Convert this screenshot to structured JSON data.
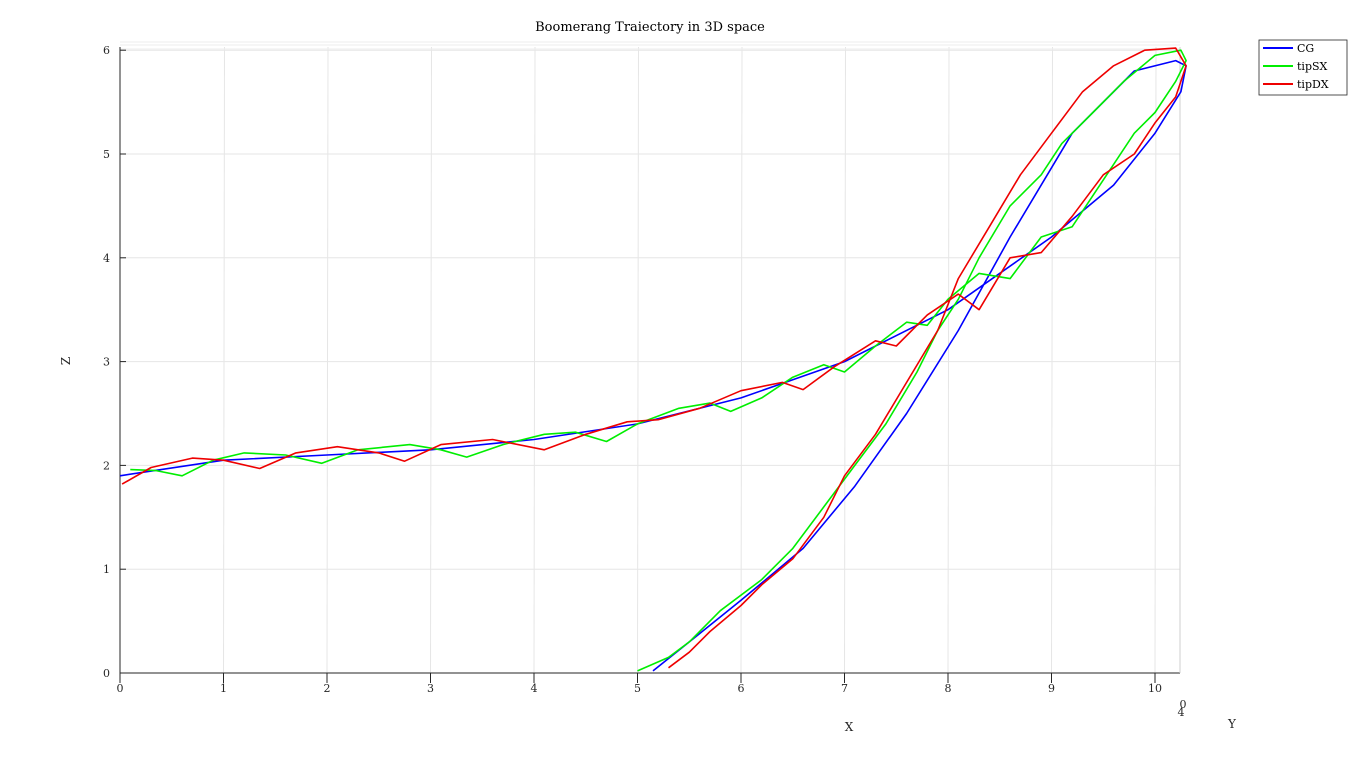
{
  "chart_data": {
    "type": "line",
    "title": "Boomerang Traiectory in 3D space",
    "xlabel": "X",
    "ylabel": "Y",
    "zlabel": "Z",
    "xlim": [
      0,
      10.4
    ],
    "zlim": [
      0,
      6.1
    ],
    "x_ticks": [
      "0",
      "1",
      "2",
      "3",
      "4",
      "5",
      "6",
      "7",
      "8",
      "9",
      "10"
    ],
    "y_ticks": [
      "0",
      "4"
    ],
    "z_ticks": [
      "0",
      "1",
      "2",
      "3",
      "4",
      "5",
      "6"
    ],
    "grid": true,
    "legend_position": "top-right",
    "series": [
      {
        "name": "CG",
        "color": "#0000ff",
        "x": [
          0.0,
          1.0,
          2.0,
          3.0,
          4.0,
          5.0,
          6.0,
          7.0,
          8.0,
          9.0,
          9.6,
          10.0,
          10.25,
          10.3,
          10.2,
          9.8,
          9.2,
          8.6,
          8.1,
          7.6,
          7.1,
          6.6,
          6.0,
          5.5,
          5.15
        ],
        "z": [
          1.9,
          2.05,
          2.1,
          2.15,
          2.25,
          2.4,
          2.65,
          3.0,
          3.5,
          4.2,
          4.7,
          5.2,
          5.6,
          5.85,
          5.9,
          5.8,
          5.2,
          4.2,
          3.3,
          2.5,
          1.8,
          1.2,
          0.7,
          0.3,
          0.02
        ]
      },
      {
        "name": "tipSX",
        "color": "#00ee00",
        "x": [
          0.1,
          0.35,
          0.6,
          0.9,
          1.2,
          1.6,
          1.95,
          2.3,
          2.8,
          3.1,
          3.35,
          3.7,
          4.1,
          4.4,
          4.7,
          5.0,
          5.4,
          5.7,
          5.9,
          6.2,
          6.5,
          6.8,
          7.0,
          7.3,
          7.6,
          7.8,
          8.0,
          8.3,
          8.6,
          8.9,
          9.2,
          9.5,
          9.8,
          10.0,
          10.2,
          10.3,
          10.25,
          10.0,
          9.7,
          9.4,
          9.1,
          8.9,
          8.6,
          8.3,
          8.1,
          7.9,
          7.7,
          7.4,
          7.1,
          6.8,
          6.5,
          6.2,
          5.8,
          5.5,
          5.3,
          5.0
        ],
        "z": [
          1.96,
          1.95,
          1.9,
          2.05,
          2.12,
          2.1,
          2.02,
          2.15,
          2.2,
          2.15,
          2.08,
          2.2,
          2.3,
          2.32,
          2.23,
          2.4,
          2.55,
          2.6,
          2.52,
          2.65,
          2.85,
          2.97,
          2.9,
          3.15,
          3.38,
          3.35,
          3.6,
          3.85,
          3.8,
          4.2,
          4.3,
          4.75,
          5.2,
          5.4,
          5.7,
          5.9,
          6.0,
          5.95,
          5.7,
          5.4,
          5.1,
          4.8,
          4.5,
          4.0,
          3.6,
          3.3,
          2.9,
          2.4,
          2.0,
          1.6,
          1.2,
          0.9,
          0.6,
          0.3,
          0.15,
          0.02
        ]
      },
      {
        "name": "tipDX",
        "color": "#ee0000",
        "x": [
          0.02,
          0.3,
          0.7,
          1.0,
          1.35,
          1.7,
          2.1,
          2.5,
          2.75,
          3.1,
          3.6,
          4.1,
          4.5,
          4.9,
          5.2,
          5.6,
          6.0,
          6.4,
          6.6,
          6.9,
          7.3,
          7.5,
          7.8,
          8.1,
          8.3,
          8.6,
          8.9,
          9.2,
          9.5,
          9.8,
          10.0,
          10.2,
          10.3,
          10.2,
          9.9,
          9.6,
          9.3,
          9.0,
          8.7,
          8.4,
          8.1,
          7.9,
          7.6,
          7.3,
          7.0,
          6.8,
          6.5,
          6.2,
          6.0,
          5.7,
          5.5,
          5.3
        ],
        "z": [
          1.82,
          1.98,
          2.07,
          2.05,
          1.97,
          2.12,
          2.18,
          2.12,
          2.04,
          2.2,
          2.25,
          2.15,
          2.3,
          2.42,
          2.44,
          2.55,
          2.72,
          2.8,
          2.73,
          2.95,
          3.2,
          3.15,
          3.45,
          3.65,
          3.5,
          4.0,
          4.05,
          4.4,
          4.8,
          5.0,
          5.3,
          5.55,
          5.85,
          6.02,
          6.0,
          5.85,
          5.6,
          5.2,
          4.8,
          4.3,
          3.8,
          3.3,
          2.8,
          2.3,
          1.9,
          1.5,
          1.1,
          0.85,
          0.65,
          0.4,
          0.2,
          0.05
        ]
      }
    ]
  }
}
